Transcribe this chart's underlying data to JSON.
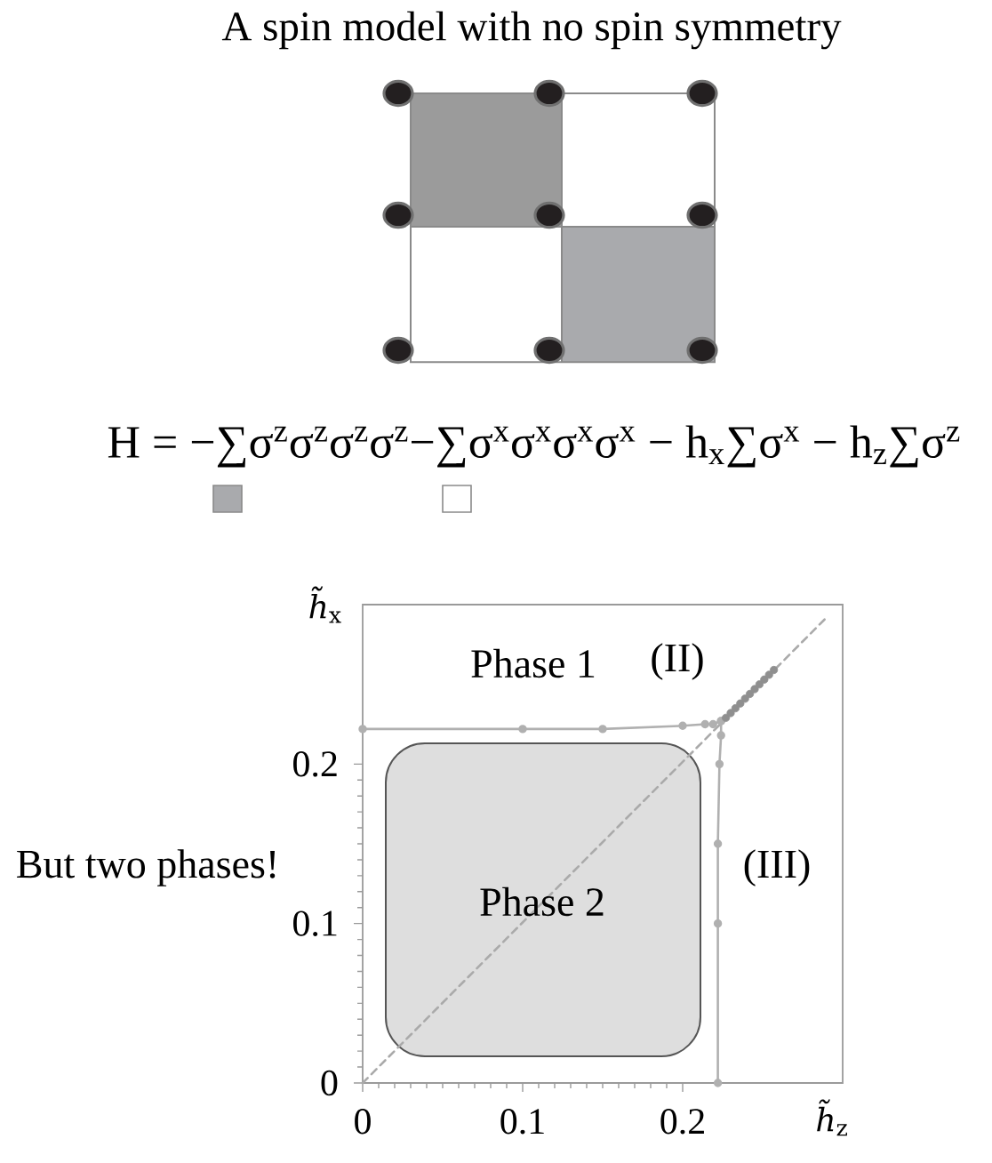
{
  "chart_data": {
    "type": "line",
    "title": "A spin model with no spin symmetry",
    "xlabel": "*h̃*$_{z}$",
    "ylabel": "*h̃*$_{x}$",
    "xlim": [
      0,
      0.3
    ],
    "ylim": [
      0,
      0.3
    ],
    "xticks": [
      0,
      0.1,
      0.2
    ],
    "yticks": [
      0,
      0.1,
      0.2
    ],
    "marker": "circle",
    "series": [
      {
        "color": "#b0b0b0",
        "x": [
          0,
          0.1,
          0.15,
          0.2,
          0.214,
          0.219,
          0.224
        ],
        "values": [
          0.222,
          0.222,
          0.222,
          0.224,
          0.225,
          0.225,
          0.227
        ]
      },
      {
        "color": "#b0b0b0",
        "x": [
          0.222,
          0.222,
          0.222,
          0.223,
          0.224,
          0.224
        ],
        "values": [
          0,
          0.1,
          0.15,
          0.2,
          0.218,
          0.227
        ]
      },
      {
        "type": "scatter",
        "color": "#8f8f8f",
        "x": [
          0.227,
          0.23,
          0.233,
          0.236,
          0.239,
          0.242,
          0.245,
          0.248,
          0.251,
          0.254,
          0.257
        ],
        "values": [
          0.229,
          0.232,
          0.235,
          0.238,
          0.241,
          0.244,
          0.247,
          0.25,
          0.253,
          0.256,
          0.259
        ]
      },
      {
        "color": "#aaaaaa",
        "line_style": "dashed",
        "marker": "none",
        "x": [
          0,
          0.29
        ],
        "values": [
          0,
          0.292
        ]
      }
    ],
    "annotations": [
      "Phase 1",
      "(II)",
      "(III)",
      "Phase 2",
      "But two phases!",
      "H = −∑σ$^{z}$σ$^{z}$σ$^{z}$σ$^{z}$−∑σ$^{x}$σ$^{x}$σ$^{x}$σ$^{x}$ − h$_{x}$∑σ$^{x}$ − h$_{z}$∑σ$^{z}$"
    ]
  }
}
